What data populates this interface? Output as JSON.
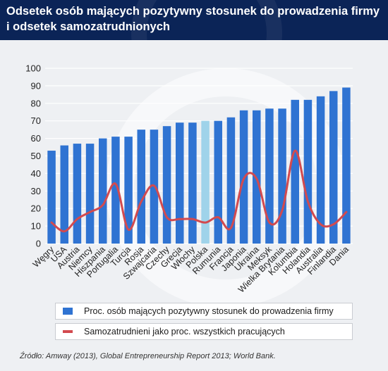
{
  "header": {
    "title": "Odsetek osób mających pozytywny stosunek do prowadzenia firmy i odsetek samozatrudnionych"
  },
  "colors": {
    "header_bg": "#0b2457",
    "bar": "#2f73d2",
    "bar_highlight": "#9fd3ea",
    "line": "#d24a4f"
  },
  "chart_data": {
    "type": "bar",
    "categories": [
      "Węgry",
      "USA",
      "Austria",
      "Niemcy",
      "Hiszpania",
      "Portugalia",
      "Turcja",
      "Rosja",
      "Szwajcaria",
      "Czechy",
      "Grecja",
      "Włochy",
      "Polska",
      "Rumunia",
      "Francja",
      "Japonia",
      "Ukraina",
      "Meksyk",
      "Wielka Brytania",
      "Kolumbia",
      "Holandia",
      "Australia",
      "Finlandia",
      "Dania"
    ],
    "highlight_category": "Polska",
    "series": [
      {
        "name": "Proc. osób mających pozytywny stosunek do prowadzenia firmy",
        "type": "bar",
        "values": [
          53,
          56,
          57,
          57,
          60,
          61,
          61,
          65,
          65,
          67,
          69,
          69,
          70,
          70,
          72,
          76,
          76,
          77,
          77,
          82,
          82,
          84,
          87,
          89
        ]
      },
      {
        "name": "Samozatrudnieni jako proc. wszystkich pracujących",
        "type": "line",
        "values": [
          12,
          7,
          14,
          18,
          22,
          34,
          8,
          24,
          33,
          15,
          14,
          14,
          12,
          15,
          9,
          37,
          37,
          12,
          19,
          53,
          24,
          11,
          11,
          18
        ]
      }
    ],
    "yticks": [
      0,
      10,
      20,
      30,
      40,
      50,
      60,
      70,
      80,
      90,
      100
    ],
    "ylim": [
      0,
      100
    ],
    "grid": true,
    "legend_position": "bottom"
  },
  "legend": {
    "item1": "Proc. osób mających pozytywny stosunek do prowadzenia firmy",
    "item2": "Samozatrudnieni jako proc. wszystkich pracujących"
  },
  "source": "Źródło: Amway (2013), Global Entrepreneurship Report 2013; World Bank."
}
